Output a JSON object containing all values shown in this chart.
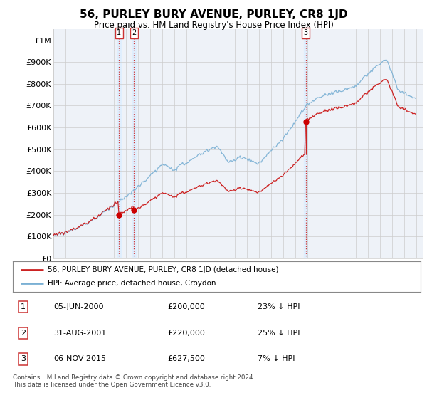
{
  "title": "56, PURLEY BURY AVENUE, PURLEY, CR8 1JD",
  "subtitle": "Price paid vs. HM Land Registry's House Price Index (HPI)",
  "ylabel_ticks": [
    "£0",
    "£100K",
    "£200K",
    "£300K",
    "£400K",
    "£500K",
    "£600K",
    "£700K",
    "£800K",
    "£900K",
    "£1M"
  ],
  "ytick_values": [
    0,
    100000,
    200000,
    300000,
    400000,
    500000,
    600000,
    700000,
    800000,
    900000,
    1000000
  ],
  "ylim": [
    0,
    1050000
  ],
  "xlim_start": 1995.0,
  "xlim_end": 2025.5,
  "sale_dates": [
    2000.43,
    2001.67,
    2015.85
  ],
  "sale_prices": [
    200000,
    220000,
    627500
  ],
  "sale_labels": [
    "1",
    "2",
    "3"
  ],
  "vline_color": "#cc3333",
  "vline_style": ":",
  "vband_color": "#ddeeff",
  "sale_marker_color": "#cc0000",
  "hpi_line_color": "#7ab0d4",
  "price_line_color": "#cc2222",
  "legend_house_label": "56, PURLEY BURY AVENUE, PURLEY, CR8 1JD (detached house)",
  "legend_hpi_label": "HPI: Average price, detached house, Croydon",
  "table_rows": [
    [
      "1",
      "05-JUN-2000",
      "£200,000",
      "23% ↓ HPI"
    ],
    [
      "2",
      "31-AUG-2001",
      "£220,000",
      "25% ↓ HPI"
    ],
    [
      "3",
      "06-NOV-2015",
      "£627,500",
      "7% ↓ HPI"
    ]
  ],
  "footer": "Contains HM Land Registry data © Crown copyright and database right 2024.\nThis data is licensed under the Open Government Licence v3.0.",
  "background_color": "#ffffff",
  "plot_bg_color": "#eef2f8"
}
